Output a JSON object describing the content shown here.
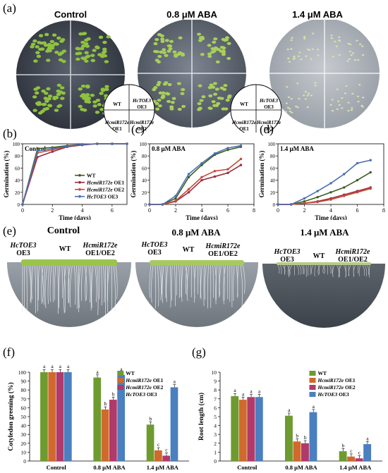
{
  "panels": {
    "a": {
      "label": "(a)",
      "titles": [
        "Control",
        "0.8 μM ABA",
        "1.4 μM ABA"
      ],
      "legend": {
        "tr": "HcTOE3",
        "tr2": "OE3",
        "tl": "WT",
        "bl": "HcmiR172e",
        "bl2": "OE1",
        "br": "HcmiR172e",
        "br2": "OE2"
      },
      "colors": {
        "plate_dark": "#3e4450",
        "plate_mid": "#6b7380",
        "plate_light": "#b7bcc3",
        "seedling": "#8fc23f"
      }
    },
    "b": {
      "label": "(b)",
      "inner": "Control"
    },
    "c": {
      "label": "(c)",
      "inner": "0.8 μM ABA"
    },
    "d": {
      "label": "(d)",
      "inner": "1.4 μM ABA"
    },
    "e": {
      "label": "(e)",
      "titles": [
        "Control",
        "0.8 μM ABA",
        "1.4 μM ABA"
      ],
      "lbl_toe": "HcTOE3",
      "lbl_toe2": "OE3",
      "lbl_wt": "WT",
      "lbl_mir": "HcmiR172e",
      "lbl_mir2": "OE1/OE2"
    },
    "f": {
      "label": "(f)"
    },
    "g": {
      "label": "(g)"
    }
  },
  "chart_data": [
    {
      "type": "line",
      "panel": "b",
      "xlabel": "Time (days)",
      "ylabel": "Germination (%)",
      "xlim": [
        0,
        7
      ],
      "ylim": [
        0,
        100
      ],
      "xticks": [
        0,
        2,
        4,
        6
      ],
      "yticks": [
        0,
        20,
        40,
        60,
        80,
        100
      ],
      "x": [
        0,
        1,
        2,
        3,
        4,
        5,
        6,
        7
      ],
      "series": [
        {
          "name": "WT",
          "color": "#3a5f1f",
          "values": [
            0,
            92,
            94,
            97,
            99,
            100,
            100,
            100
          ]
        },
        {
          "name": "HcmiR172e OE1",
          "color": "#9b2a3a",
          "values": [
            0,
            78,
            87,
            95,
            98,
            100,
            100,
            100
          ]
        },
        {
          "name": "HcmiR172e OE2",
          "color": "#c24c3a",
          "values": [
            0,
            85,
            90,
            96,
            99,
            100,
            100,
            100
          ]
        },
        {
          "name": "HcTOE3 OE3",
          "color": "#4a6fb0",
          "values": [
            0,
            88,
            92,
            96,
            99,
            100,
            100,
            100
          ]
        }
      ],
      "legend_labels": [
        "WT",
        "HcmiR172e OE1",
        "HcmiR172e OE2",
        "HcTOE3 OE3"
      ]
    },
    {
      "type": "line",
      "panel": "c",
      "xlabel": "Time (days)",
      "ylabel": "Germination (%)",
      "xlim": [
        0,
        8
      ],
      "ylim": [
        0,
        100
      ],
      "xticks": [
        0,
        2,
        4,
        6,
        8
      ],
      "yticks": [
        0,
        20,
        40,
        60,
        80,
        100
      ],
      "x": [
        0,
        1,
        2,
        3,
        4,
        5,
        6,
        7
      ],
      "series": [
        {
          "name": "WT",
          "values": [
            0,
            0,
            10,
            45,
            65,
            82,
            90,
            95
          ],
          "color": "#3a5f1f"
        },
        {
          "name": "HcmiR172e OE1",
          "values": [
            0,
            0,
            5,
            20,
            40,
            46,
            52,
            65
          ],
          "color": "#9b2a3a"
        },
        {
          "name": "HcmiR172e OE2",
          "values": [
            0,
            0,
            6,
            25,
            45,
            55,
            58,
            75
          ],
          "color": "#c24c3a"
        },
        {
          "name": "HcTOE3 OE3",
          "values": [
            0,
            0,
            14,
            50,
            68,
            84,
            93,
            97
          ],
          "color": "#4a6fb0"
        }
      ]
    },
    {
      "type": "line",
      "panel": "d",
      "xlabel": "Time (days)",
      "ylabel": "Germination (%)",
      "xlim": [
        0,
        8
      ],
      "ylim": [
        0,
        100
      ],
      "xticks": [
        0,
        2,
        4,
        6,
        8
      ],
      "yticks": [
        0,
        20,
        40,
        60,
        80,
        100
      ],
      "x": [
        0,
        1,
        2,
        3,
        4,
        5,
        6,
        7
      ],
      "series": [
        {
          "name": "WT",
          "values": [
            0,
            0,
            5,
            12,
            20,
            28,
            40,
            53
          ],
          "color": "#3a5f1f"
        },
        {
          "name": "HcmiR172e OE1",
          "values": [
            0,
            0,
            2,
            5,
            10,
            16,
            22,
            28
          ],
          "color": "#9b2a3a"
        },
        {
          "name": "HcmiR172e OE2",
          "values": [
            0,
            0,
            2,
            4,
            8,
            14,
            20,
            26
          ],
          "color": "#c24c3a"
        },
        {
          "name": "HcTOE3 OE3",
          "values": [
            0,
            0,
            10,
            22,
            35,
            50,
            68,
            73
          ],
          "color": "#4a6fb0"
        }
      ]
    },
    {
      "type": "bar",
      "panel": "f",
      "ylabel": "Cotyledon greening (%)",
      "ylim": [
        0,
        100
      ],
      "yticks": [
        0,
        10,
        20,
        30,
        40,
        50,
        60,
        70,
        80,
        90,
        100
      ],
      "categories": [
        "Control",
        "0.8 μM ABA",
        "1.4 μM ABA"
      ],
      "series": [
        {
          "name": "WT",
          "color": "#6e9b2f",
          "values": [
            100,
            94,
            41
          ],
          "letters": [
            "a",
            "a",
            "b"
          ]
        },
        {
          "name": "HcmiR172e OE1",
          "color": "#cf6a2c",
          "values": [
            100,
            58,
            12
          ],
          "letters": [
            "a",
            "b",
            "c"
          ]
        },
        {
          "name": "HcmiR172e OE2",
          "color": "#b03a6a",
          "values": [
            100,
            69,
            6
          ],
          "letters": [
            "a",
            "b",
            "c"
          ]
        },
        {
          "name": "HcTOE3 OE3",
          "color": "#4a7fc0",
          "values": [
            100,
            97,
            83
          ],
          "letters": [
            "a",
            "a",
            "a"
          ]
        }
      ],
      "legend_labels": [
        "WT",
        "HcmiR172e OE1",
        "HcmiR172e OE2",
        "HcTOE3 OE3"
      ]
    },
    {
      "type": "bar",
      "panel": "g",
      "ylabel": "Root length (cm)",
      "ylim": [
        0,
        10
      ],
      "yticks": [
        0,
        1,
        2,
        3,
        4,
        5,
        6,
        7,
        8,
        9,
        10
      ],
      "categories": [
        "Control",
        "0.8 μM ABA",
        "1.4 μM ABA"
      ],
      "series": [
        {
          "name": "WT",
          "color": "#6e9b2f",
          "values": [
            7.3,
            5.1,
            1.1
          ],
          "letters": [
            "a",
            "a",
            "b"
          ]
        },
        {
          "name": "HcmiR172e OE1",
          "color": "#cf6a2c",
          "values": [
            6.9,
            2.2,
            0.5
          ],
          "letters": [
            "a",
            "b",
            "c"
          ]
        },
        {
          "name": "HcmiR172e OE2",
          "color": "#b03a6a",
          "values": [
            7.2,
            2.0,
            0.3
          ],
          "letters": [
            "a",
            "b",
            "c"
          ]
        },
        {
          "name": "HcTOE3 OE3",
          "color": "#4a7fc0",
          "values": [
            7.2,
            5.5,
            1.9
          ],
          "letters": [
            "a",
            "a",
            "a"
          ]
        }
      ],
      "legend_labels": [
        "WT",
        "HcmiR172e OE1",
        "HcmiR172e OE2",
        "HcTOE3 OE3"
      ]
    }
  ]
}
